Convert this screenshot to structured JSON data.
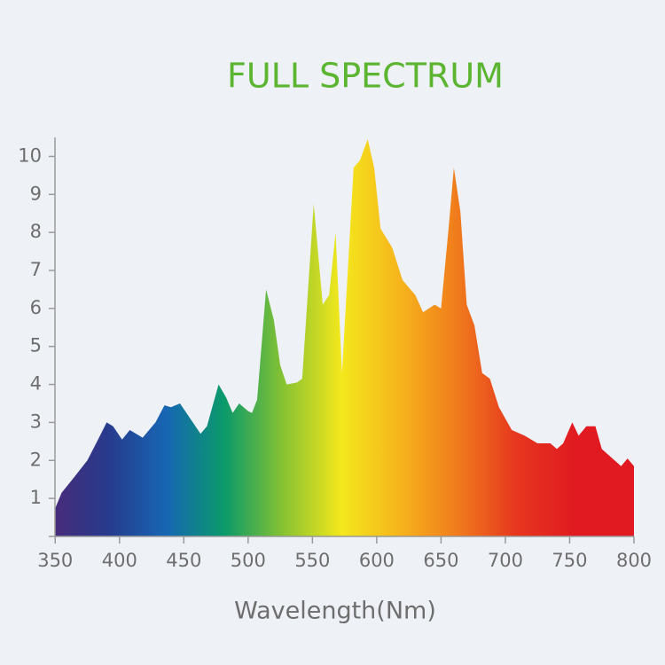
{
  "chart_data": {
    "type": "area",
    "title": "FULL SPECTRUM",
    "x_label": "Wavelength(Nm)",
    "x": [
      350,
      355,
      365,
      375,
      385,
      390,
      395,
      402,
      408,
      418,
      428,
      435,
      440,
      447,
      455,
      463,
      468,
      477,
      483,
      488,
      493,
      500,
      503,
      507,
      514,
      520,
      525,
      530,
      538,
      542,
      551,
      558,
      563,
      568,
      573,
      582,
      587,
      593,
      598,
      603,
      612,
      620,
      630,
      636,
      645,
      650,
      656,
      660,
      665,
      670,
      676,
      682,
      688,
      695,
      705,
      715,
      725,
      735,
      740,
      745,
      752,
      757,
      763,
      770,
      775,
      785,
      790,
      795,
      800
    ],
    "y": [
      0.74,
      1.15,
      1.57,
      2.0,
      2.66,
      3.0,
      2.9,
      2.55,
      2.8,
      2.6,
      3.0,
      3.45,
      3.4,
      3.5,
      3.1,
      2.7,
      2.9,
      4.0,
      3.65,
      3.25,
      3.5,
      3.3,
      3.25,
      3.6,
      6.5,
      5.7,
      4.5,
      4.0,
      4.05,
      4.15,
      8.75,
      6.1,
      6.35,
      8.0,
      4.3,
      9.7,
      9.9,
      10.45,
      9.7,
      8.1,
      7.6,
      6.75,
      6.35,
      5.9,
      6.1,
      6.0,
      8.15,
      9.7,
      8.55,
      6.1,
      5.55,
      4.3,
      4.15,
      3.4,
      2.8,
      2.65,
      2.45,
      2.45,
      2.3,
      2.45,
      3.0,
      2.65,
      2.9,
      2.9,
      2.3,
      2.0,
      1.85,
      2.05,
      1.85
    ],
    "xlim": [
      345,
      800
    ],
    "ylim": [
      0,
      10.5
    ],
    "xticks": [
      350,
      400,
      450,
      500,
      550,
      600,
      650,
      700,
      750,
      800
    ],
    "yticks": [
      1,
      2,
      3,
      4,
      5,
      6,
      7,
      8,
      9,
      10
    ],
    "colors": [
      "#4a2a78",
      "#283a8c",
      "#1766b4",
      "#0a9a6a",
      "#86c232",
      "#f4e81c",
      "#f6b41c",
      "#f07a1c",
      "#e6361f",
      "#e01a20",
      "#e01a20"
    ],
    "title_color": "#5bb531"
  }
}
